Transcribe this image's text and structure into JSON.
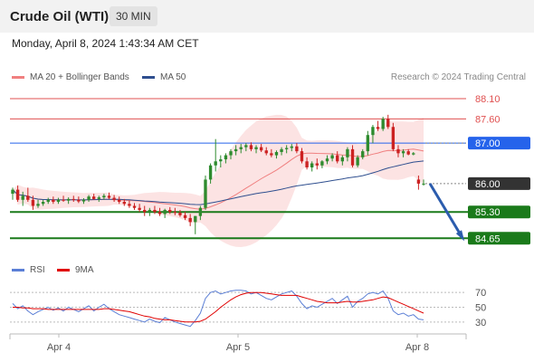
{
  "header": {
    "symbol": "Crude Oil (WTI)",
    "timeframe": "30 MIN",
    "timestamp": "Monday, April 8, 2024 1:43:34 AM CET"
  },
  "legend": {
    "ma20_label": "MA 20 + Bollinger Bands",
    "ma50_label": "MA 50",
    "rsi_label": "RSI",
    "rsi_ma_label": "9MA",
    "credit": "Research © 2024 Trading Central"
  },
  "colors": {
    "ma20": "#f08080",
    "ma50": "#2f4f8f",
    "resistance": "#e05050",
    "support": "#1a7a1a",
    "pivot": "#2563eb",
    "last": "#333333",
    "rsi": "#5b7fd6",
    "rsi_ma": "#e00000",
    "bull": "#2e8b2e",
    "bear": "#cc2222"
  },
  "chart_data": [
    {
      "type": "candlestick",
      "ylim": [
        84.5,
        88.3
      ],
      "x_ticks": [
        "Apr 4",
        "Apr 5",
        "Apr 8"
      ],
      "levels": [
        {
          "value": 88.1,
          "label": "88.10",
          "kind": "resistance"
        },
        {
          "value": 87.6,
          "label": "87.60",
          "kind": "resistance"
        },
        {
          "value": 87.0,
          "label": "87.00",
          "kind": "pivot"
        },
        {
          "value": 86.0,
          "label": "86.00",
          "kind": "last"
        },
        {
          "value": 85.3,
          "label": "85.30",
          "kind": "support"
        },
        {
          "value": 84.65,
          "label": "84.65",
          "kind": "support"
        }
      ],
      "ohlc": [
        [
          85.75,
          85.9,
          85.6,
          85.85
        ],
        [
          85.85,
          85.95,
          85.55,
          85.6
        ],
        [
          85.6,
          85.8,
          85.45,
          85.7
        ],
        [
          85.7,
          85.9,
          85.55,
          85.6
        ],
        [
          85.6,
          85.7,
          85.35,
          85.45
        ],
        [
          85.45,
          85.6,
          85.4,
          85.5
        ],
        [
          85.5,
          85.6,
          85.45,
          85.55
        ],
        [
          85.55,
          85.65,
          85.5,
          85.6
        ],
        [
          85.6,
          85.68,
          85.5,
          85.55
        ],
        [
          85.55,
          85.65,
          85.5,
          85.6
        ],
        [
          85.6,
          85.7,
          85.55,
          85.58
        ],
        [
          85.58,
          85.66,
          85.5,
          85.62
        ],
        [
          85.62,
          85.7,
          85.55,
          85.6
        ],
        [
          85.6,
          85.68,
          85.52,
          85.56
        ],
        [
          85.56,
          85.64,
          85.5,
          85.6
        ],
        [
          85.6,
          85.72,
          85.55,
          85.68
        ],
        [
          85.68,
          85.75,
          85.6,
          85.62
        ],
        [
          85.62,
          85.7,
          85.55,
          85.66
        ],
        [
          85.66,
          85.75,
          85.6,
          85.7
        ],
        [
          85.7,
          85.78,
          85.62,
          85.65
        ],
        [
          85.65,
          85.72,
          85.55,
          85.6
        ],
        [
          85.6,
          85.68,
          85.5,
          85.55
        ],
        [
          85.55,
          85.62,
          85.45,
          85.5
        ],
        [
          85.5,
          85.58,
          85.4,
          85.45
        ],
        [
          85.45,
          85.52,
          85.35,
          85.4
        ],
        [
          85.4,
          85.5,
          85.3,
          85.35
        ],
        [
          85.35,
          85.45,
          85.2,
          85.3
        ],
        [
          85.3,
          85.4,
          85.2,
          85.35
        ],
        [
          85.35,
          85.45,
          85.25,
          85.3
        ],
        [
          85.3,
          85.4,
          85.2,
          85.25
        ],
        [
          85.25,
          85.38,
          85.15,
          85.35
        ],
        [
          85.35,
          85.42,
          85.25,
          85.3
        ],
        [
          85.3,
          85.4,
          85.22,
          85.28
        ],
        [
          85.28,
          85.35,
          85.18,
          85.22
        ],
        [
          85.22,
          85.3,
          85.1,
          85.15
        ],
        [
          85.15,
          85.25,
          84.95,
          85.05
        ],
        [
          85.05,
          85.2,
          84.75,
          85.2
        ],
        [
          85.2,
          85.45,
          85.1,
          85.4
        ],
        [
          85.4,
          86.2,
          85.35,
          86.1
        ],
        [
          86.1,
          86.5,
          86.0,
          86.45
        ],
        [
          86.45,
          87.1,
          86.3,
          86.55
        ],
        [
          86.55,
          86.7,
          86.4,
          86.6
        ],
        [
          86.6,
          86.75,
          86.5,
          86.7
        ],
        [
          86.7,
          86.85,
          86.6,
          86.8
        ],
        [
          86.8,
          86.95,
          86.7,
          86.85
        ],
        [
          86.85,
          86.98,
          86.75,
          86.9
        ],
        [
          86.9,
          87.0,
          86.8,
          86.95
        ],
        [
          86.95,
          87.02,
          86.8,
          86.85
        ],
        [
          86.85,
          86.95,
          86.75,
          86.9
        ],
        [
          86.9,
          86.98,
          86.78,
          86.82
        ],
        [
          86.82,
          86.9,
          86.7,
          86.75
        ],
        [
          86.75,
          86.85,
          86.65,
          86.7
        ],
        [
          86.7,
          86.82,
          86.62,
          86.78
        ],
        [
          86.78,
          86.9,
          86.7,
          86.85
        ],
        [
          86.85,
          86.95,
          86.75,
          86.88
        ],
        [
          86.88,
          86.98,
          86.8,
          86.92
        ],
        [
          86.92,
          87.0,
          86.75,
          86.8
        ],
        [
          86.8,
          86.88,
          86.5,
          86.55
        ],
        [
          86.55,
          86.65,
          86.35,
          86.4
        ],
        [
          86.4,
          86.55,
          86.3,
          86.5
        ],
        [
          86.5,
          86.62,
          86.35,
          86.45
        ],
        [
          86.45,
          86.58,
          86.38,
          86.55
        ],
        [
          86.55,
          86.7,
          86.48,
          86.62
        ],
        [
          86.62,
          86.75,
          86.55,
          86.7
        ],
        [
          86.7,
          86.8,
          86.5,
          86.55
        ],
        [
          86.55,
          86.7,
          86.45,
          86.65
        ],
        [
          86.65,
          86.9,
          86.55,
          86.85
        ],
        [
          86.85,
          86.95,
          86.4,
          86.45
        ],
        [
          86.45,
          86.7,
          86.4,
          86.65
        ],
        [
          86.65,
          86.85,
          86.6,
          86.8
        ],
        [
          86.8,
          87.3,
          86.7,
          87.2
        ],
        [
          87.2,
          87.45,
          87.0,
          87.4
        ],
        [
          87.4,
          87.55,
          87.3,
          87.35
        ],
        [
          87.35,
          87.65,
          87.3,
          87.6
        ],
        [
          87.6,
          87.7,
          87.35,
          87.4
        ],
        [
          87.4,
          87.5,
          86.8,
          86.85
        ],
        [
          86.85,
          86.95,
          86.65,
          86.75
        ],
        [
          86.75,
          86.85,
          86.65,
          86.8
        ],
        [
          86.8,
          86.85,
          86.7,
          86.72
        ],
        [
          86.72,
          86.78,
          86.7,
          86.75
        ],
        [
          86.1,
          86.2,
          85.85,
          86.0
        ],
        [
          86.0,
          86.1,
          85.95,
          86.0
        ]
      ],
      "projection": {
        "from": 86.0,
        "to": 84.65
      }
    },
    {
      "type": "line",
      "title": "RSI",
      "y_ticks": [
        70,
        50,
        30
      ],
      "ylim": [
        20,
        80
      ],
      "series": [
        {
          "name": "RSI",
          "values": [
            55,
            48,
            52,
            45,
            40,
            44,
            47,
            50,
            46,
            49,
            45,
            50,
            47,
            44,
            48,
            52,
            45,
            50,
            54,
            48,
            44,
            40,
            38,
            36,
            34,
            32,
            30,
            34,
            31,
            29,
            36,
            33,
            30,
            28,
            26,
            24,
            32,
            42,
            62,
            70,
            72,
            68,
            70,
            72,
            73,
            73,
            72,
            68,
            70,
            66,
            62,
            60,
            64,
            68,
            70,
            72,
            65,
            55,
            48,
            52,
            50,
            54,
            58,
            62,
            55,
            60,
            65,
            50,
            58,
            62,
            68,
            70,
            68,
            72,
            62,
            45,
            40,
            42,
            38,
            40,
            34,
            33
          ]
        },
        {
          "name": "9MA",
          "values": [
            50,
            50,
            49,
            49,
            48,
            48,
            48,
            47,
            47,
            47,
            47,
            47,
            47,
            47,
            47,
            47,
            47,
            47,
            48,
            48,
            47,
            46,
            45,
            44,
            42,
            40,
            38,
            37,
            35,
            34,
            33,
            33,
            32,
            31,
            30,
            30,
            30,
            31,
            34,
            39,
            44,
            50,
            55,
            60,
            64,
            67,
            69,
            70,
            70,
            70,
            69,
            68,
            67,
            66,
            66,
            66,
            66,
            64,
            62,
            60,
            58,
            57,
            56,
            56,
            56,
            57,
            58,
            57,
            57,
            58,
            59,
            60,
            62,
            64,
            63,
            60,
            57,
            54,
            51,
            48,
            45,
            42
          ]
        }
      ]
    }
  ]
}
